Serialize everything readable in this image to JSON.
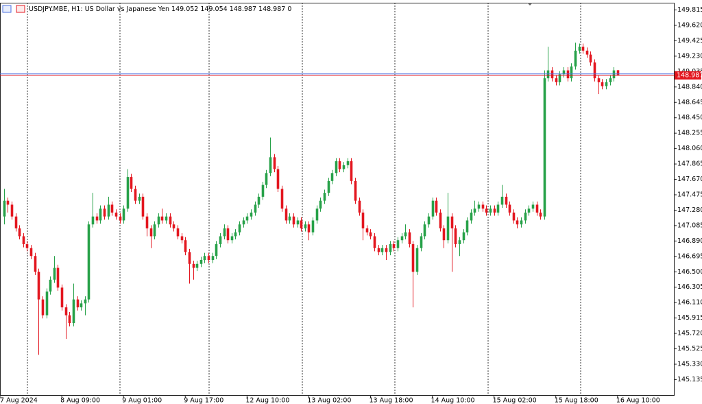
{
  "chart_data": {
    "type": "candlestick",
    "title": "USDJPY.MBE, H1:",
    "subtitle": "US Dollar vs Japanese Yen",
    "spread": 0,
    "up_color": "#26a148",
    "down_color": "#e3161f",
    "bid_color": "#e3161f",
    "ask_color": "#4a6fe0",
    "ask": 149.005,
    "ylim": [
      144.935,
      149.902
    ],
    "yticks": [
      {
        "value": 145.135,
        "label": "145.135"
      },
      {
        "value": 145.33,
        "label": "145.330"
      },
      {
        "value": 145.525,
        "label": "145.525"
      },
      {
        "value": 145.72,
        "label": "145.720"
      },
      {
        "value": 145.915,
        "label": "145.915"
      },
      {
        "value": 146.11,
        "label": "146.110"
      },
      {
        "value": 146.305,
        "label": "146.305"
      },
      {
        "value": 146.5,
        "label": "146.500"
      },
      {
        "value": 146.695,
        "label": "146.695"
      },
      {
        "value": 146.89,
        "label": "146.890"
      },
      {
        "value": 147.085,
        "label": "147.085"
      },
      {
        "value": 147.28,
        "label": "147.280"
      },
      {
        "value": 147.475,
        "label": "147.475"
      },
      {
        "value": 147.67,
        "label": "147.670"
      },
      {
        "value": 147.865,
        "label": "147.865"
      },
      {
        "value": 148.06,
        "label": "148.060"
      },
      {
        "value": 148.255,
        "label": "148.255"
      },
      {
        "value": 148.45,
        "label": "148.450"
      },
      {
        "value": 148.645,
        "label": "148.645"
      },
      {
        "value": 148.84,
        "label": "148.840"
      },
      {
        "value": 149.035,
        "label": "149.035"
      },
      {
        "value": 149.23,
        "label": "149.230"
      },
      {
        "value": 149.425,
        "label": "149.425"
      },
      {
        "value": 149.62,
        "label": "149.620"
      },
      {
        "value": 149.815,
        "label": "149.815"
      }
    ],
    "xlim": [
      -1,
      173.6
    ],
    "xticks": [
      {
        "value": -1,
        "label": "7 Aug 2024"
      },
      {
        "value": 15,
        "label": "8 Aug 09:00"
      },
      {
        "value": 31,
        "label": "9 Aug 01:00"
      },
      {
        "value": 47,
        "label": "9 Aug 17:00"
      },
      {
        "value": 63,
        "label": "12 Aug 10:00"
      },
      {
        "value": 79,
        "label": "13 Aug 02:00"
      },
      {
        "value": 95,
        "label": "13 Aug 18:00"
      },
      {
        "value": 111,
        "label": "14 Aug 10:00"
      },
      {
        "value": 127,
        "label": "15 Aug 02:00"
      },
      {
        "value": 143,
        "label": "15 Aug 18:00"
      },
      {
        "value": 159,
        "label": "16 Aug 10:00"
      }
    ],
    "open": [
      147.2,
      147.4,
      147.35,
      147.2,
      147.05,
      146.95,
      146.85,
      146.8,
      146.7,
      146.5,
      146.15,
      145.95,
      146.25,
      146.4,
      146.55,
      146.3,
      146.05,
      145.95,
      145.85,
      146.15,
      146.05,
      146.1,
      146.15,
      147.1,
      147.2,
      147.15,
      147.3,
      147.2,
      147.35,
      147.25,
      147.2,
      147.15,
      147.3,
      147.7,
      147.55,
      147.4,
      147.45,
      147.2,
      147.05,
      146.95,
      147.1,
      147.2,
      147.15,
      147.2,
      147.1,
      147.05,
      146.95,
      146.9,
      146.75,
      146.6,
      146.55,
      146.6,
      146.65,
      146.7,
      146.65,
      146.7,
      146.85,
      146.95,
      147.05,
      146.9,
      146.95,
      147.0,
      147.1,
      147.15,
      147.2,
      147.25,
      147.35,
      147.45,
      147.6,
      147.75,
      147.95,
      147.8,
      147.55,
      147.3,
      147.15,
      147.2,
      147.1,
      147.15,
      147.05,
      147.1,
      147.0,
      147.15,
      147.3,
      147.4,
      147.5,
      147.65,
      147.75,
      147.9,
      147.8,
      147.85,
      147.9,
      147.65,
      147.4,
      147.25,
      147.05,
      147.0,
      146.95,
      146.8,
      146.75,
      146.8,
      146.75,
      146.85,
      146.8,
      146.9,
      146.95,
      147.0,
      146.85,
      146.5,
      146.8,
      146.95,
      147.1,
      147.2,
      147.4,
      147.25,
      147.05,
      146.9,
      147.2,
      147.05,
      146.85,
      146.9,
      147.0,
      147.15,
      147.25,
      147.3,
      147.35,
      147.3,
      147.25,
      147.3,
      147.25,
      147.35,
      147.45,
      147.35,
      147.25,
      147.15,
      147.1,
      147.15,
      147.25,
      147.3,
      147.35,
      147.25,
      147.2,
      148.95,
      149.05,
      148.95,
      148.9,
      149.0,
      149.05,
      148.95,
      149.1,
      149.3,
      149.35,
      149.3,
      149.25,
      149.15,
      148.95,
      148.9,
      148.85,
      148.9,
      148.95,
      149.052
    ],
    "high": [
      147.55,
      147.44,
      147.39,
      147.24,
      147.09,
      146.99,
      146.89,
      146.84,
      146.74,
      146.54,
      146.19,
      146.29,
      146.44,
      146.7,
      146.59,
      146.34,
      146.09,
      145.99,
      146.35,
      146.19,
      146.14,
      146.19,
      147.14,
      147.5,
      147.24,
      147.34,
      147.34,
      147.45,
      147.39,
      147.29,
      147.24,
      147.34,
      147.8,
      147.74,
      147.59,
      147.49,
      147.49,
      147.24,
      147.09,
      147.14,
      147.24,
      147.3,
      147.24,
      147.24,
      147.14,
      147.09,
      146.99,
      146.94,
      146.79,
      146.64,
      146.64,
      146.69,
      146.74,
      146.74,
      146.74,
      146.89,
      146.99,
      147.1,
      147.09,
      146.99,
      147.04,
      147.14,
      147.19,
      147.24,
      147.29,
      147.39,
      147.49,
      147.64,
      147.79,
      148.2,
      147.99,
      147.84,
      147.59,
      147.34,
      147.24,
      147.24,
      147.19,
      147.19,
      147.14,
      147.14,
      147.19,
      147.34,
      147.44,
      147.54,
      147.69,
      147.79,
      147.94,
      147.94,
      147.89,
      147.94,
      147.94,
      147.69,
      147.44,
      147.29,
      147.09,
      147.04,
      146.99,
      146.84,
      146.84,
      146.84,
      146.89,
      146.89,
      146.94,
      146.99,
      147.1,
      147.04,
      146.89,
      146.84,
      146.99,
      147.14,
      147.24,
      147.44,
      147.44,
      147.29,
      147.09,
      147.5,
      147.24,
      147.09,
      146.94,
      147.04,
      147.19,
      147.29,
      147.4,
      147.39,
      147.39,
      147.34,
      147.34,
      147.34,
      147.39,
      147.6,
      147.49,
      147.39,
      147.29,
      147.19,
      147.19,
      147.29,
      147.34,
      147.39,
      147.39,
      147.29,
      149.05,
      149.35,
      149.09,
      148.99,
      149.04,
      149.09,
      149.09,
      149.14,
      149.4,
      149.39,
      149.39,
      149.34,
      149.29,
      149.19,
      148.99,
      148.94,
      148.94,
      148.99,
      149.09,
      149.054
    ],
    "low": [
      147.1,
      147.25,
      147.16,
      147.01,
      146.91,
      146.81,
      146.76,
      146.66,
      146.46,
      145.45,
      145.91,
      145.91,
      146.21,
      146.36,
      146.26,
      146.01,
      145.65,
      145.81,
      145.81,
      146.01,
      146.01,
      145.95,
      146.11,
      147.06,
      147.11,
      147.11,
      147.16,
      147.16,
      147.21,
      147.16,
      147.11,
      147.11,
      147.26,
      147.51,
      147.36,
      147.36,
      147.16,
      146.95,
      146.8,
      146.91,
      147.06,
      147.11,
      147.11,
      147.06,
      147.01,
      146.91,
      146.86,
      146.71,
      146.35,
      146.4,
      146.51,
      146.56,
      146.61,
      146.61,
      146.61,
      146.66,
      146.81,
      146.91,
      146.86,
      146.86,
      146.91,
      146.96,
      147.06,
      147.11,
      147.16,
      147.21,
      147.31,
      147.41,
      147.56,
      147.71,
      147.76,
      147.51,
      147.26,
      147.11,
      147.11,
      147.06,
      147.06,
      147.01,
      147.01,
      146.9,
      146.96,
      147.11,
      147.26,
      147.36,
      147.46,
      147.61,
      147.71,
      147.76,
      147.76,
      147.81,
      147.61,
      147.36,
      147.21,
      146.9,
      146.96,
      146.91,
      146.76,
      146.71,
      146.71,
      146.65,
      146.71,
      146.76,
      146.76,
      146.86,
      146.91,
      146.81,
      146.05,
      146.46,
      146.76,
      146.91,
      147.06,
      147.16,
      147.21,
      147.01,
      146.8,
      146.86,
      146.5,
      146.81,
      146.7,
      146.86,
      146.96,
      147.11,
      147.21,
      147.26,
      147.26,
      147.21,
      147.21,
      147.21,
      147.21,
      147.31,
      147.31,
      147.21,
      147.11,
      147.05,
      147.06,
      147.11,
      147.21,
      147.26,
      147.21,
      147.16,
      147.16,
      148.91,
      148.91,
      148.86,
      148.86,
      148.96,
      148.91,
      148.91,
      149.06,
      149.26,
      149.26,
      149.21,
      149.11,
      148.91,
      148.75,
      148.81,
      148.81,
      148.86,
      148.91,
      148.987
    ],
    "close": [
      147.4,
      147.35,
      147.2,
      147.05,
      146.95,
      146.85,
      146.8,
      146.7,
      146.5,
      146.15,
      145.95,
      146.25,
      146.4,
      146.55,
      146.3,
      146.05,
      145.95,
      145.85,
      146.15,
      146.05,
      146.1,
      146.15,
      147.1,
      147.2,
      147.15,
      147.3,
      147.2,
      147.35,
      147.25,
      147.2,
      147.15,
      147.3,
      147.7,
      147.55,
      147.4,
      147.45,
      147.2,
      147.05,
      146.95,
      147.1,
      147.2,
      147.15,
      147.2,
      147.1,
      147.05,
      146.95,
      146.9,
      146.75,
      146.6,
      146.55,
      146.6,
      146.65,
      146.7,
      146.65,
      146.7,
      146.85,
      146.95,
      147.05,
      146.9,
      146.95,
      147.0,
      147.1,
      147.15,
      147.2,
      147.25,
      147.35,
      147.45,
      147.6,
      147.75,
      147.95,
      147.8,
      147.55,
      147.3,
      147.15,
      147.2,
      147.1,
      147.15,
      147.05,
      147.1,
      147.0,
      147.15,
      147.3,
      147.4,
      147.5,
      147.65,
      147.75,
      147.9,
      147.8,
      147.85,
      147.9,
      147.65,
      147.4,
      147.25,
      147.05,
      147.0,
      146.95,
      146.8,
      146.75,
      146.8,
      146.75,
      146.85,
      146.8,
      146.9,
      146.95,
      147.0,
      146.85,
      146.5,
      146.8,
      146.95,
      147.1,
      147.2,
      147.4,
      147.25,
      147.05,
      146.9,
      147.2,
      147.05,
      146.85,
      146.9,
      147.0,
      147.15,
      147.25,
      147.3,
      147.35,
      147.3,
      147.25,
      147.3,
      147.25,
      147.35,
      147.45,
      147.35,
      147.25,
      147.15,
      147.1,
      147.15,
      147.25,
      147.3,
      147.35,
      147.25,
      147.2,
      148.95,
      149.05,
      148.95,
      148.9,
      149.0,
      149.05,
      148.95,
      149.1,
      149.3,
      149.35,
      149.3,
      149.25,
      149.15,
      148.95,
      148.9,
      148.85,
      148.9,
      148.95,
      149.05,
      148.987
    ]
  }
}
